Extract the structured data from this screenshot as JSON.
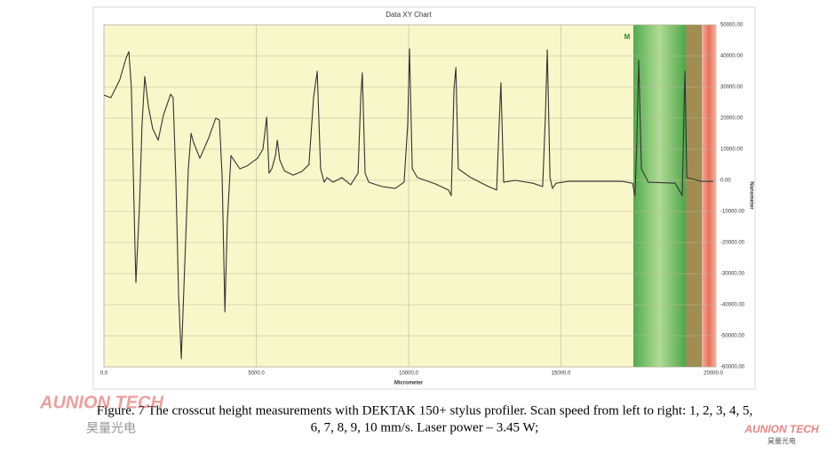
{
  "chart_data": {
    "type": "line",
    "title": "Data XY Chart",
    "x_label": "Micrometer",
    "y_label": "Nanometer",
    "annotation": "M",
    "xlim": [
      0,
      20000
    ],
    "ylim": [
      -60000,
      50000
    ],
    "xticks": [
      {
        "value": 0,
        "label": "0.0"
      },
      {
        "value": 5000,
        "label": "5000.0"
      },
      {
        "value": 10000,
        "label": "10000.0"
      },
      {
        "value": 15000,
        "label": "15000.0"
      },
      {
        "value": 20000,
        "label": "20000.0"
      }
    ],
    "yticks": [
      {
        "value": 50000,
        "label": "50000.00"
      },
      {
        "value": 40000,
        "label": "40000.00"
      },
      {
        "value": 30000,
        "label": "30000.00"
      },
      {
        "value": 20000,
        "label": "20000.00"
      },
      {
        "value": 10000,
        "label": "10000.00"
      },
      {
        "value": 0,
        "label": "0.00"
      },
      {
        "value": -10000,
        "label": "-10000.00"
      },
      {
        "value": -20000,
        "label": "-20000.00"
      },
      {
        "value": -30000,
        "label": "-30000.00"
      },
      {
        "value": -40000,
        "label": "-40000.00"
      },
      {
        "value": -50000,
        "label": "-50000.00"
      },
      {
        "value": -60000,
        "label": "-60000.00"
      }
    ],
    "grid": true,
    "color": "#333333",
    "x": [
      0,
      230,
      520,
      730,
      820,
      900,
      1020,
      1050,
      1170,
      1250,
      1340,
      1460,
      1600,
      1780,
      1950,
      2190,
      2270,
      2360,
      2450,
      2540,
      2650,
      2770,
      2860,
      2940,
      3150,
      3440,
      3670,
      3790,
      3880,
      3970,
      4050,
      4170,
      4260,
      4460,
      4690,
      5040,
      5220,
      5340,
      5420,
      5510,
      5630,
      5690,
      5770,
      5920,
      6210,
      6500,
      6730,
      6880,
      7000,
      7110,
      7230,
      7320,
      7520,
      7810,
      8100,
      8340,
      8430,
      8480,
      8570,
      8690,
      9130,
      9560,
      9850,
      9970,
      10030,
      10120,
      10290,
      10870,
      11310,
      11400,
      11490,
      11550,
      11630,
      12040,
      12620,
      12890,
      12970,
      13030,
      13120,
      13500,
      14080,
      14400,
      14490,
      14550,
      14640,
      14720,
      14840,
      15250,
      17000,
      17350,
      17430,
      17490,
      17550,
      17640,
      17870,
      18750,
      18980,
      19040,
      19070,
      19130,
      19620,
      20000
    ],
    "values": [
      27400,
      26600,
      32300,
      39400,
      41400,
      29700,
      -22000,
      -32900,
      -7700,
      18000,
      33400,
      23700,
      16600,
      12900,
      20900,
      27700,
      26600,
      900,
      -36300,
      -57400,
      -27700,
      3700,
      15100,
      12300,
      7100,
      13700,
      20000,
      19400,
      900,
      -42300,
      -13400,
      8000,
      6600,
      3700,
      4600,
      7100,
      10000,
      20300,
      2300,
      3700,
      8000,
      12900,
      6600,
      3100,
      1700,
      2900,
      5100,
      26600,
      35100,
      3700,
      -600,
      900,
      -600,
      900,
      -1400,
      2300,
      26600,
      34600,
      2300,
      -600,
      -2000,
      -2600,
      -600,
      18000,
      42300,
      3700,
      900,
      -1100,
      -3100,
      -4900,
      29400,
      36300,
      3700,
      900,
      -2000,
      -3100,
      18000,
      31400,
      -600,
      0,
      -900,
      -2000,
      20900,
      42000,
      900,
      -2600,
      -900,
      -300,
      -300,
      -900,
      -4900,
      12300,
      38600,
      3700,
      -600,
      -900,
      -4900,
      23700,
      35100,
      900,
      -300,
      -300
    ]
  },
  "caption": [
    "Figure. 7 The crosscut height measurements with DEKTAK 150+ stylus profiler. Scan speed from left to right: 1, 2, 3, 4, 5,",
    "6, 7, 8, 9, 10 mm/s. Laser power – 3.45 W;"
  ],
  "watermarks": [
    {
      "brand": "AUNION TECH",
      "sub": "昊量光电"
    },
    {
      "brand": "AUNION TECH",
      "sub": "昊量光电"
    }
  ]
}
